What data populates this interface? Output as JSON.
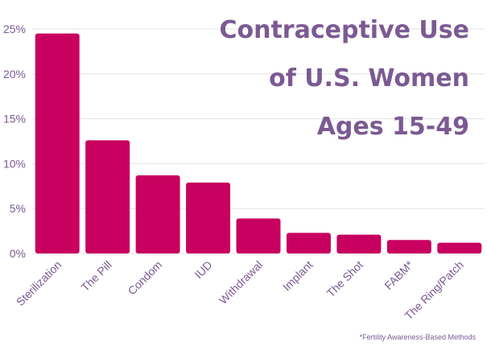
{
  "chart_data": {
    "type": "bar",
    "title_lines": [
      "Contraceptive Use",
      "of U.S. Women",
      "Ages 15-49"
    ],
    "categories": [
      "Sterilization",
      "The Pill",
      "Condom",
      "IUD",
      "Withdrawal",
      "Implant",
      "The Shot",
      "FABM*",
      "The Ring/Patch"
    ],
    "values": [
      24.5,
      12.6,
      8.7,
      7.9,
      3.9,
      2.3,
      2.1,
      1.5,
      1.2
    ],
    "ylim": [
      0,
      25
    ],
    "yticks": [
      0,
      5,
      10,
      15,
      20,
      25
    ],
    "ytick_labels": [
      "0%",
      "5%",
      "10%",
      "15%",
      "20%",
      "25%"
    ],
    "grid": true,
    "bar_color": "#c8005f",
    "text_color": "#7b5a93",
    "footnote": "*Fertility Awareness-Based Methods"
  }
}
